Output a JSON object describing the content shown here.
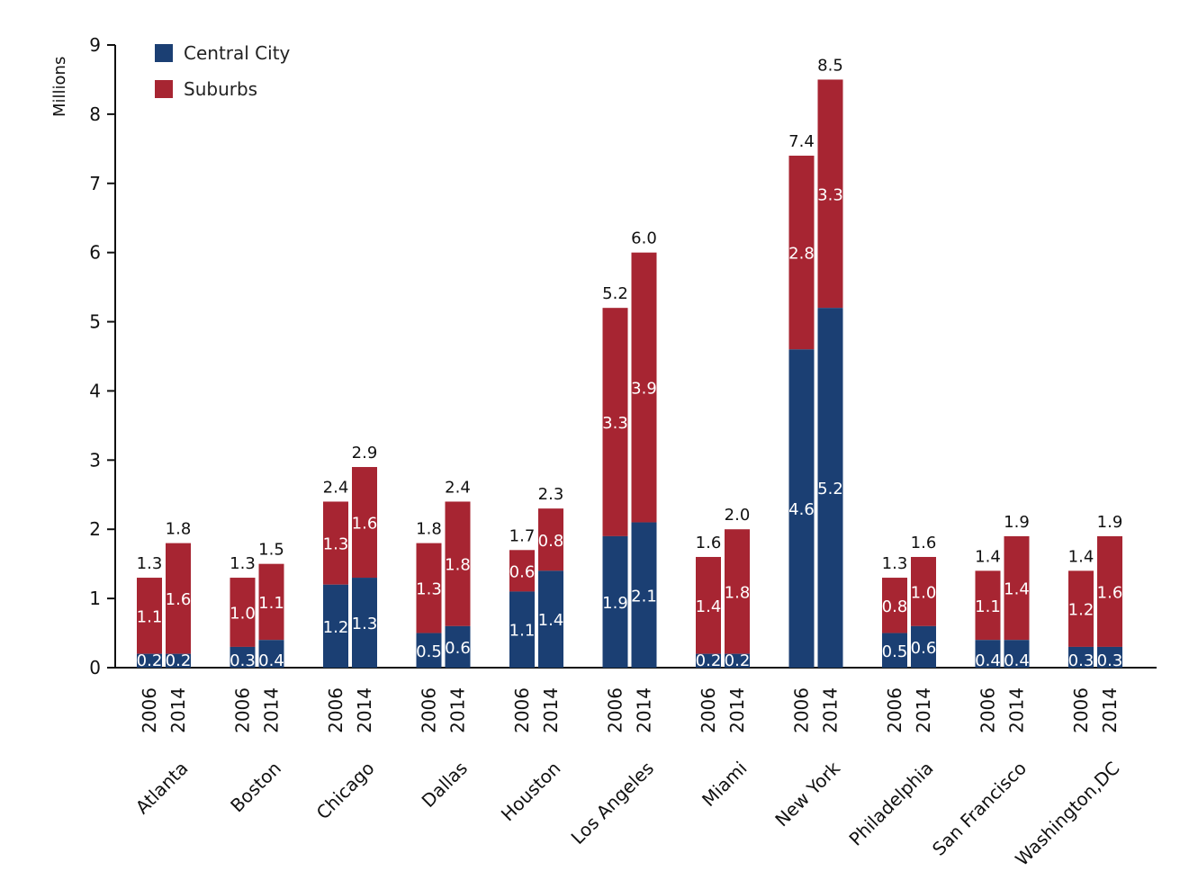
{
  "chart_data": {
    "type": "bar",
    "stacked": true,
    "title": "",
    "xlabel": "",
    "ylabel": "Millions",
    "ylim": [
      0,
      9
    ],
    "yticks": [
      "0",
      "1",
      "2",
      "3",
      "4",
      "5",
      "6",
      "7",
      "8",
      "9"
    ],
    "grid": false,
    "legend_position": "top-left",
    "groups": [
      "Atlanta",
      "Boston",
      "Chicago",
      "Dallas",
      "Houston",
      "Los Angeles",
      "Miami",
      "New York",
      "Philadelphia",
      "San Francisco",
      "Washington,DC"
    ],
    "years": [
      "2006",
      "2014"
    ],
    "series": [
      {
        "name": "Central City",
        "color": "#1b3f73",
        "values": [
          0.2,
          0.2,
          0.3,
          0.4,
          1.2,
          1.3,
          0.5,
          0.6,
          1.1,
          1.4,
          1.9,
          2.1,
          0.2,
          0.2,
          4.6,
          5.2,
          0.5,
          0.6,
          0.4,
          0.4,
          0.3,
          0.3
        ],
        "labels": [
          "0.2",
          "0.2",
          "0.3",
          "0.4",
          "1.2",
          "1.3",
          "0.5",
          "0.6",
          "1.1",
          "1.4",
          "1.9",
          "2.1",
          "0.2",
          "0.2",
          "4.6",
          "5.2",
          "0.5",
          "0.6",
          "0.4",
          "0.4",
          "0.3",
          "0.3"
        ]
      },
      {
        "name": "Suburbs",
        "color": "#a72532",
        "values": [
          1.1,
          1.6,
          1.0,
          1.1,
          1.3,
          1.6,
          1.3,
          1.8,
          0.6,
          0.8,
          3.3,
          3.9,
          1.4,
          1.8,
          2.8,
          3.3,
          0.8,
          1.0,
          1.1,
          1.4,
          1.2,
          1.6
        ],
        "labels": [
          "1.1",
          "1.6",
          "1.0",
          "1.1",
          "1.3",
          "1.6",
          "1.3",
          "1.8",
          "0.6",
          "0.8",
          "3.3",
          "3.9",
          "1.4",
          "1.8",
          "2.8",
          "3.3",
          "0.8",
          "1.0",
          "1.1",
          "1.4",
          "1.2",
          "1.6"
        ]
      }
    ],
    "totals": [
      1.3,
      1.8,
      1.3,
      1.5,
      2.4,
      2.9,
      1.8,
      2.4,
      1.7,
      2.3,
      5.2,
      6.0,
      1.6,
      2.0,
      7.4,
      8.5,
      1.3,
      1.6,
      1.4,
      1.9,
      1.4,
      1.9
    ],
    "total_labels": [
      "1.3",
      "1.8",
      "1.3",
      "1.5",
      "2.4",
      "2.9",
      "1.8",
      "2.4",
      "1.7",
      "2.3",
      "5.2",
      "6.0",
      "1.6",
      "2.0",
      "7.4",
      "8.5",
      "1.3",
      "1.6",
      "1.4",
      "1.9",
      "1.4",
      "1.9"
    ]
  }
}
